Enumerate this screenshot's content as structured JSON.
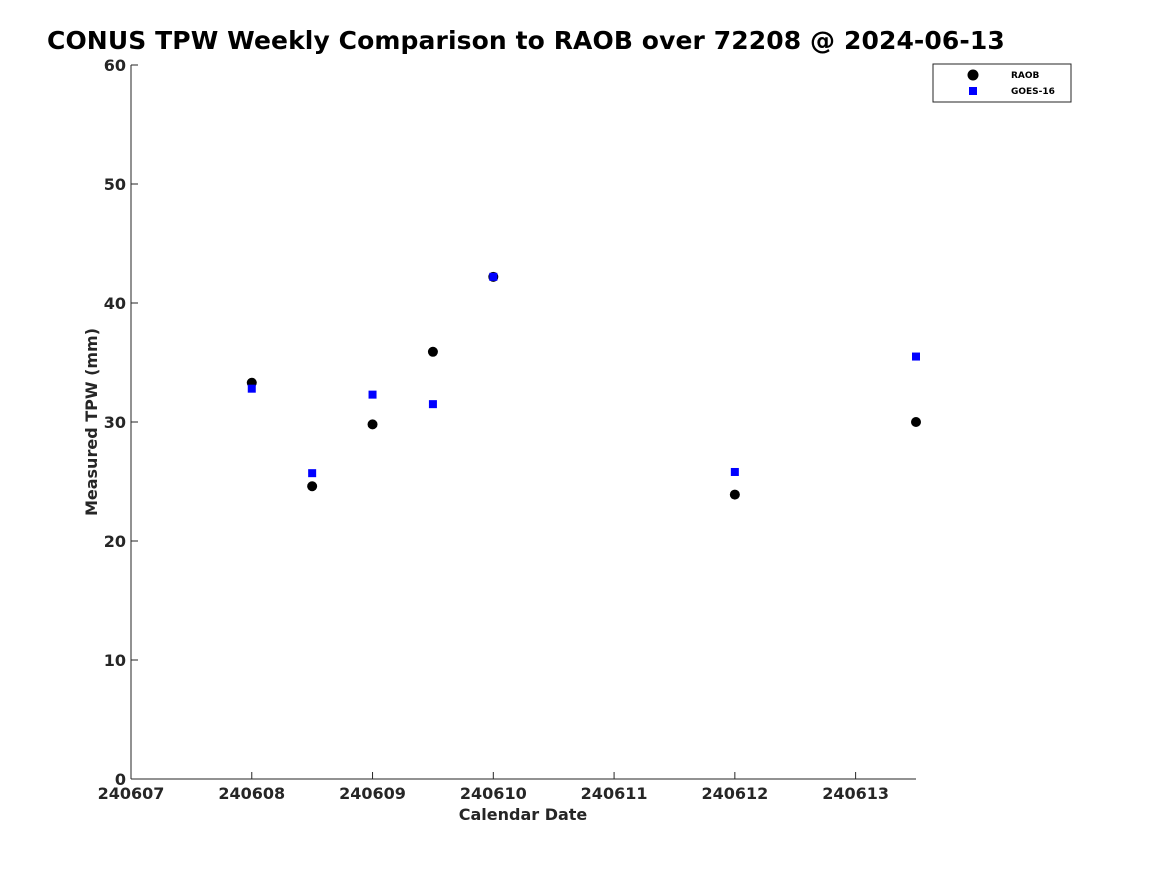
{
  "chart_data": {
    "type": "scatter",
    "title": "CONUS TPW Weekly Comparison to RAOB over 72208 @ 2024-06-13",
    "xlabel": "Calendar Date",
    "ylabel": "Measured TPW (mm)",
    "xlim": [
      240607,
      240613.5
    ],
    "ylim": [
      0,
      60
    ],
    "xticks": [
      240607,
      240608,
      240609,
      240610,
      240611,
      240612,
      240613
    ],
    "xtick_labels": [
      "240607",
      "240608",
      "240609",
      "240610",
      "240611",
      "240612",
      "240613"
    ],
    "yticks": [
      0,
      10,
      20,
      30,
      40,
      50,
      60
    ],
    "ytick_labels": [
      "0",
      "10",
      "20",
      "30",
      "40",
      "50",
      "60"
    ],
    "grid": false,
    "legend_position": "top-right",
    "series": [
      {
        "name": "RAOB",
        "marker": "circle",
        "color": "#000000",
        "x": [
          240608,
          240608.5,
          240609,
          240609.5,
          240610,
          240612,
          240613.5
        ],
        "y": [
          33.3,
          24.6,
          29.8,
          35.9,
          42.2,
          23.9,
          30.0
        ]
      },
      {
        "name": "GOES-16",
        "marker": "square",
        "color": "#0000ff",
        "x": [
          240608,
          240608.5,
          240609,
          240609.5,
          240610,
          240612,
          240613.5
        ],
        "y": [
          32.8,
          25.7,
          32.3,
          31.5,
          42.2,
          25.8,
          35.5
        ]
      }
    ]
  }
}
